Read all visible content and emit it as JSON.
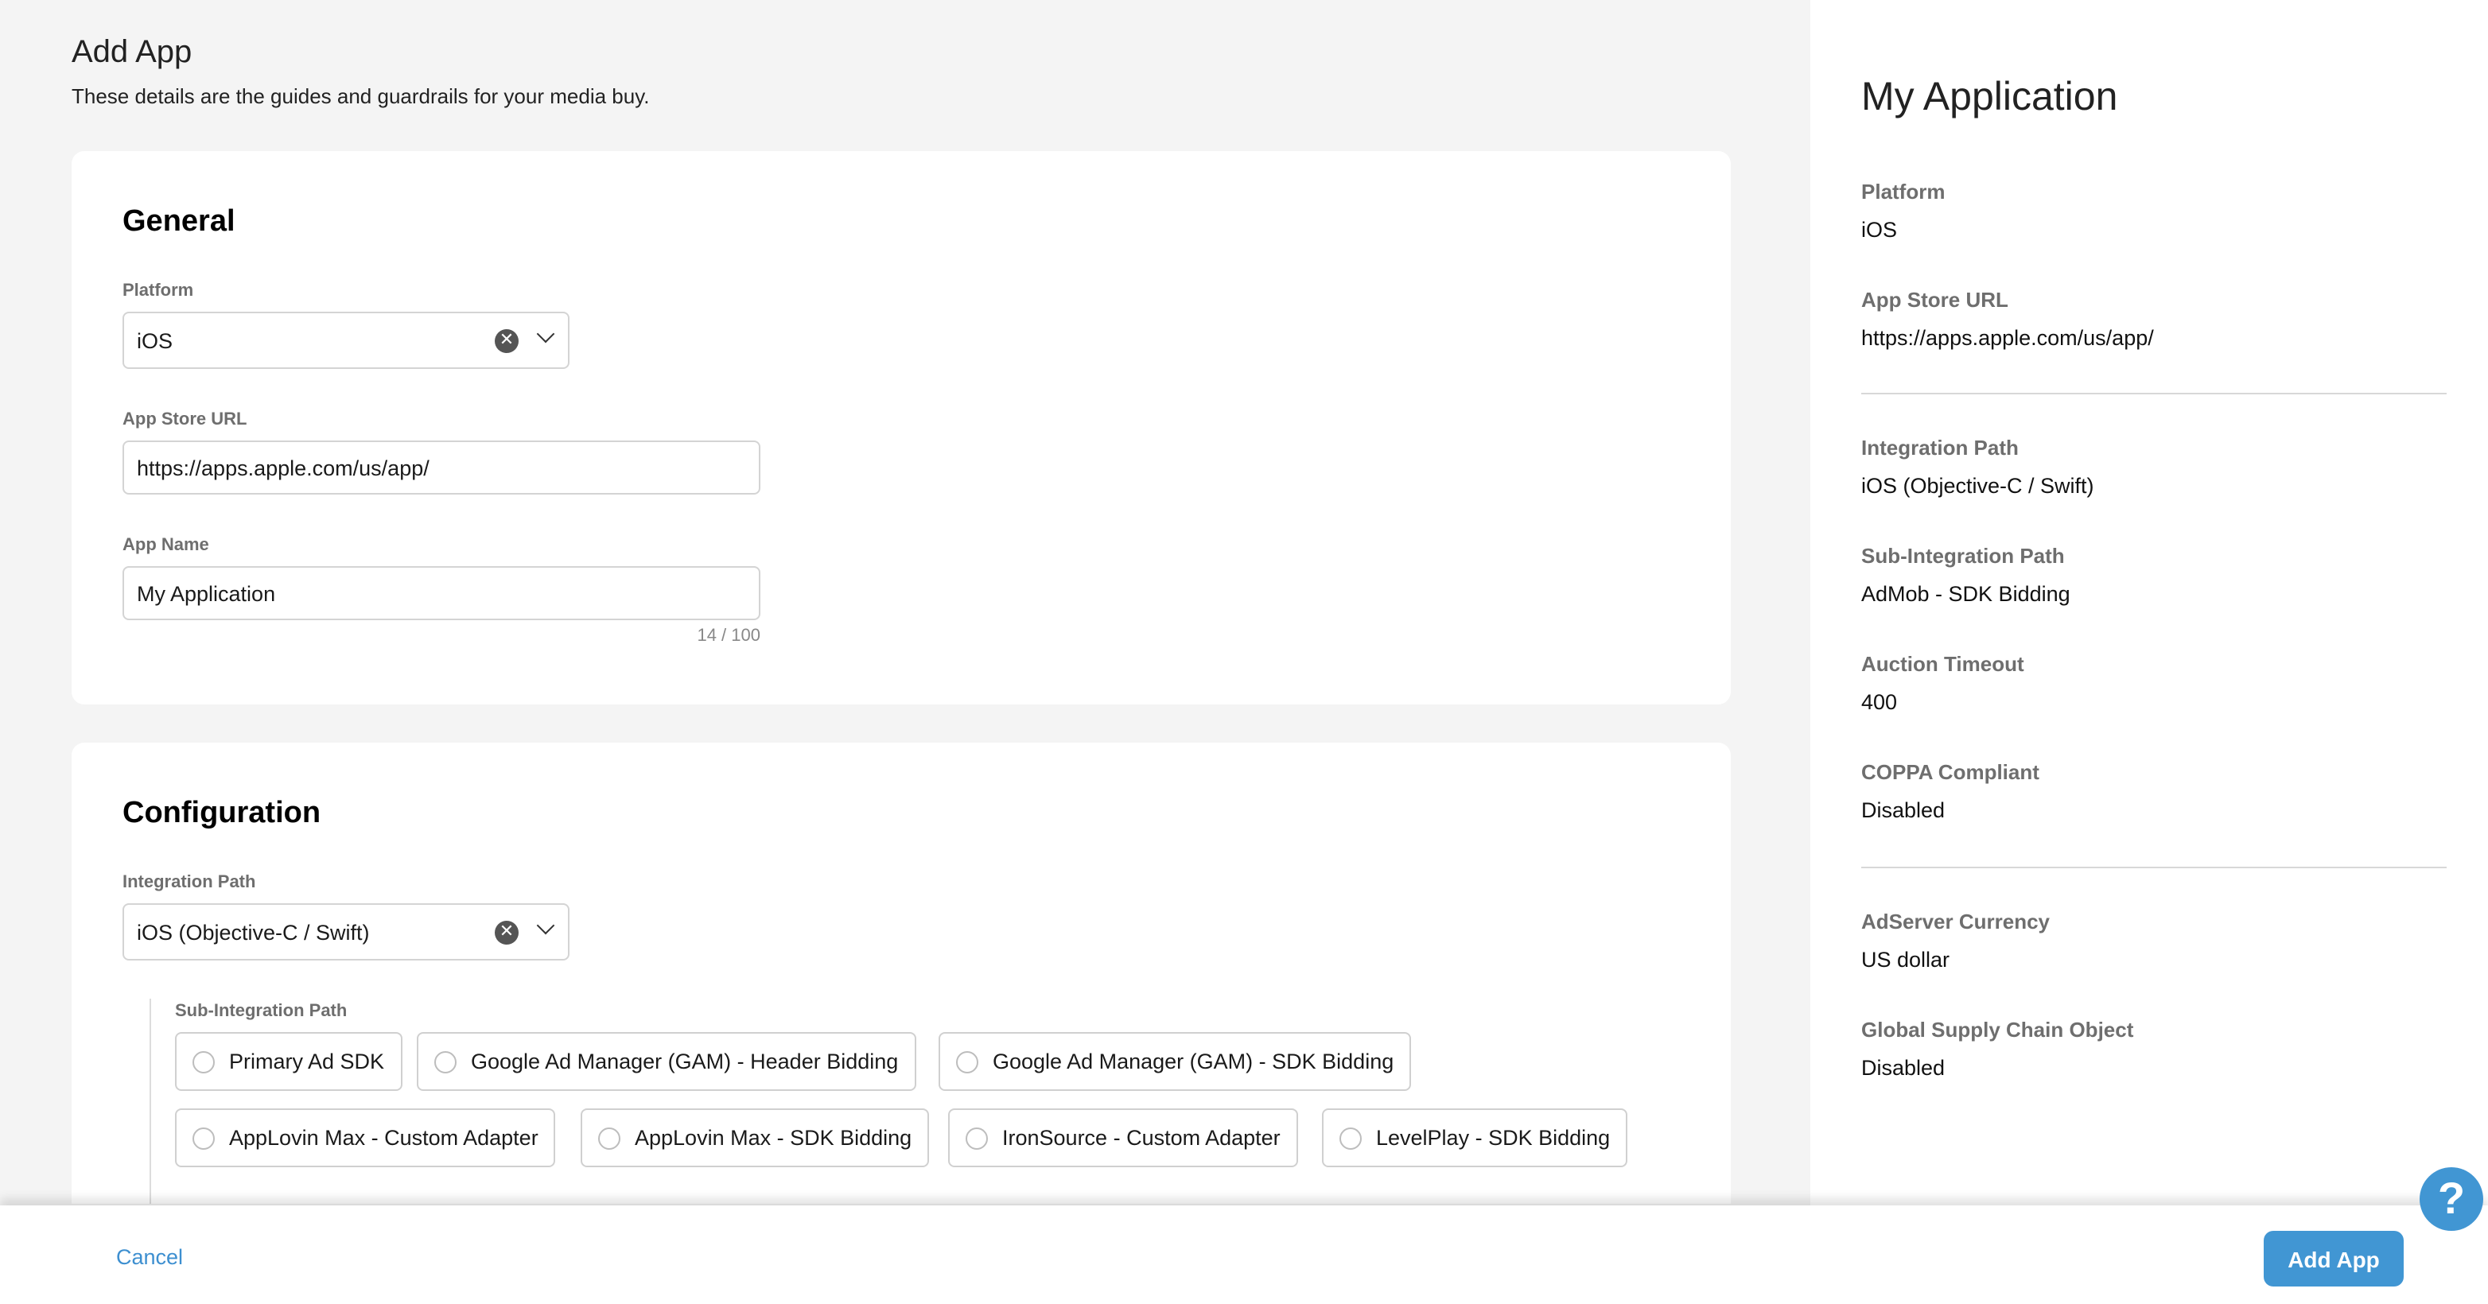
{
  "page": {
    "title": "Add App",
    "subtitle": "These details are the guides and guardrails for your media buy."
  },
  "general": {
    "heading": "General",
    "platform": {
      "label": "Platform",
      "value": "iOS"
    },
    "app_store_url": {
      "label": "App Store URL",
      "value": "https://apps.apple.com/us/app/"
    },
    "app_name": {
      "label": "App Name",
      "value": "My Application",
      "counter": "14 / 100"
    }
  },
  "configuration": {
    "heading": "Configuration",
    "integration_path": {
      "label": "Integration Path",
      "value": "iOS (Objective-C / Swift)"
    },
    "sub_integration": {
      "label": "Sub-Integration Path",
      "options": [
        "Primary Ad SDK",
        "Google Ad Manager (GAM) - Header Bidding",
        "Google Ad Manager (GAM) - SDK Bidding",
        "AppLovin Max - Custom Adapter",
        "AppLovin Max - SDK Bidding",
        "IronSource - Custom Adapter",
        "LevelPlay - SDK Bidding"
      ]
    }
  },
  "summary": {
    "title": "My Application",
    "items": [
      {
        "label": "Platform",
        "value": "iOS"
      },
      {
        "label": "App Store URL",
        "value": "https://apps.apple.com/us/app/"
      },
      {
        "label": "Integration Path",
        "value": "iOS (Objective-C / Swift)"
      },
      {
        "label": "Sub-Integration Path",
        "value": "AdMob - SDK Bidding"
      },
      {
        "label": "Auction Timeout",
        "value": "400"
      },
      {
        "label": "COPPA Compliant",
        "value": "Disabled"
      },
      {
        "label": "AdServer Currency",
        "value": "US dollar"
      },
      {
        "label": "Global Supply Chain Object",
        "value": "Disabled"
      }
    ]
  },
  "footer": {
    "cancel": "Cancel",
    "submit": "Add App",
    "help": "?"
  },
  "colors": {
    "accent": "#4196d3",
    "link": "#3d8fd0",
    "background": "#f4f4f4"
  }
}
